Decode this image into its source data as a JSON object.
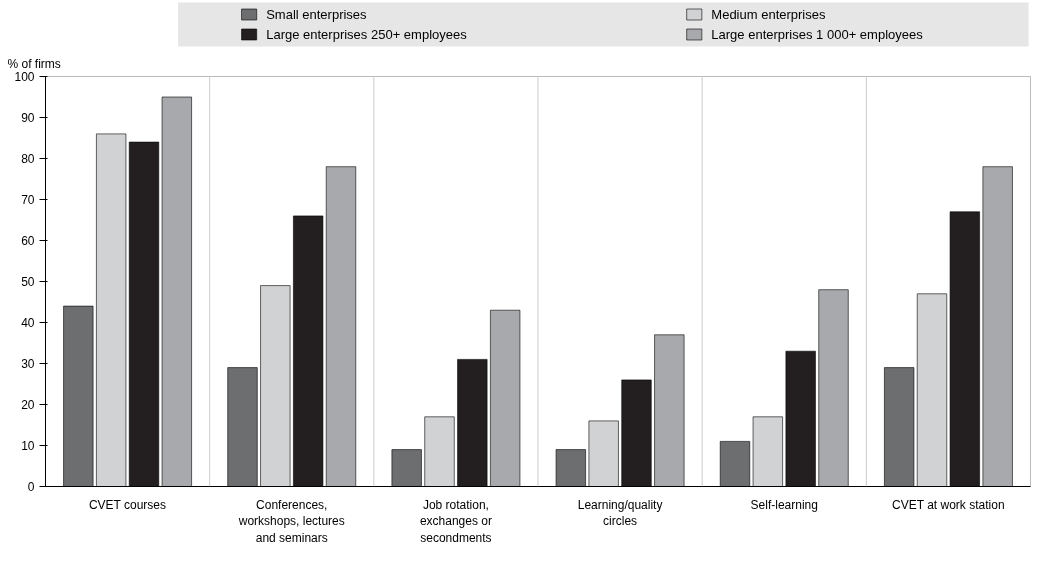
{
  "chart_data": {
    "type": "bar",
    "ylabel": "% of firms",
    "categories": [
      "CVET courses",
      "Conferences, workshops, lectures and seminars",
      "Job rotation, exchanges or secondments",
      "Learning/quality circles",
      "Self-learning",
      "CVET at work station"
    ],
    "series": [
      {
        "name": "Small enterprises",
        "color": "#6d6e70",
        "values": [
          44,
          29,
          9,
          9,
          11,
          29
        ]
      },
      {
        "name": "Medium enterprises",
        "color": "#d1d2d4",
        "values": [
          86,
          49,
          17,
          16,
          17,
          47
        ]
      },
      {
        "name": "Large enterprises 250+ employees",
        "color": "#231f20",
        "values": [
          84,
          66,
          31,
          26,
          33,
          67
        ]
      },
      {
        "name": "Large enterprises 1 000+ employees",
        "color": "#a7a9ac",
        "values": [
          95,
          78,
          43,
          37,
          48,
          78
        ]
      }
    ],
    "ylim": [
      0,
      100
    ],
    "yticks": [
      0,
      10,
      20,
      30,
      40,
      50,
      60,
      70,
      80,
      90,
      100
    ],
    "grid": "x",
    "legend": "top"
  }
}
